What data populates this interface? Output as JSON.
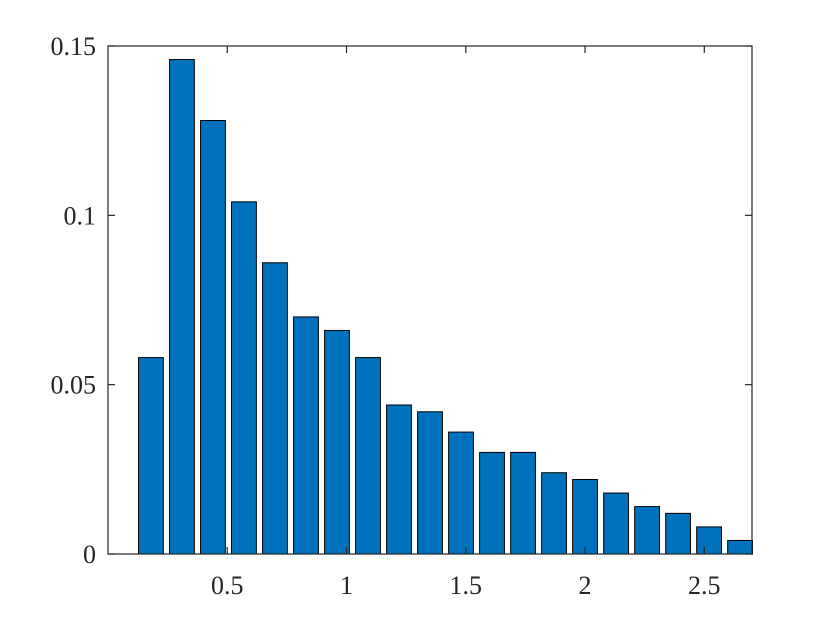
{
  "chart_data": {
    "type": "bar",
    "title": "",
    "xlabel": "",
    "ylabel": "",
    "x": [
      0.18,
      0.31,
      0.44,
      0.57,
      0.7,
      0.83,
      0.96,
      1.09,
      1.22,
      1.35,
      1.48,
      1.61,
      1.74,
      1.87,
      2.0,
      2.13,
      2.26,
      2.39,
      2.52,
      2.65
    ],
    "values": [
      0.058,
      0.146,
      0.128,
      0.104,
      0.086,
      0.07,
      0.066,
      0.058,
      0.044,
      0.042,
      0.036,
      0.03,
      0.03,
      0.024,
      0.022,
      0.018,
      0.014,
      0.012,
      0.008,
      0.004
    ],
    "bar_width": 0.104,
    "xlim": [
      0.0,
      2.7
    ],
    "ylim": [
      0,
      0.15
    ],
    "xticks": [
      0.5,
      1,
      1.5,
      2,
      2.5
    ],
    "xtick_labels": [
      "0.5",
      "1",
      "1.5",
      "2",
      "2.5"
    ],
    "yticks": [
      0,
      0.05,
      0.1,
      0.15
    ],
    "ytick_labels": [
      "0",
      "0.05",
      "0.1",
      "0.15"
    ],
    "bar_color": "#0072BD",
    "edge_color": "#000000",
    "grid": false,
    "box": true
  }
}
